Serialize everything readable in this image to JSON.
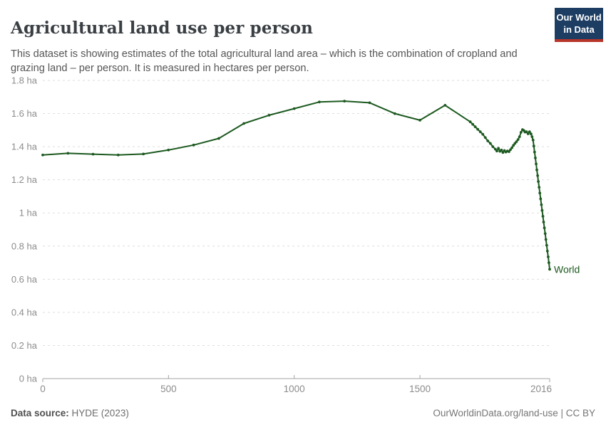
{
  "header": {
    "title": "Agricultural land use per person",
    "subtitle": "This dataset is showing estimates of the total agricultural land area – which is the combination of cropland and grazing land – per person. It is measured in hectares per person."
  },
  "logo": {
    "line1": "Our World",
    "line2": "in Data",
    "bg_color": "#1d3d63",
    "bar_color": "#b73529",
    "text_color": "#ffffff"
  },
  "chart_data": {
    "type": "line",
    "title": "Agricultural land use per person",
    "unit": "hectares per person",
    "xlabel": "",
    "ylabel": "",
    "xlim": [
      0,
      2016
    ],
    "ylim": [
      0,
      1.8
    ],
    "grid": "dashed-horizontal",
    "legend_position": "end-of-line-label",
    "line_color": "#1d5a20",
    "grid_color": "#dddddd",
    "axis_color": "#a3a3a3",
    "tick_label_color": "#8c8c8c",
    "x_ticks": [
      {
        "year": 0,
        "label": "0"
      },
      {
        "year": 500,
        "label": "500"
      },
      {
        "year": 1000,
        "label": "1000"
      },
      {
        "year": 1500,
        "label": "1500"
      },
      {
        "year": 2016,
        "label": "2016"
      }
    ],
    "y_ticks": [
      {
        "value": 0,
        "label": "0 ha"
      },
      {
        "value": 0.2,
        "label": "0.2 ha"
      },
      {
        "value": 0.4,
        "label": "0.4 ha"
      },
      {
        "value": 0.6,
        "label": "0.6 ha"
      },
      {
        "value": 0.8,
        "label": "0.8 ha"
      },
      {
        "value": 1,
        "label": "1 ha"
      },
      {
        "value": 1.2,
        "label": "1.2 ha"
      },
      {
        "value": 1.4,
        "label": "1.4 ha"
      },
      {
        "value": 1.6,
        "label": "1.6 ha"
      },
      {
        "value": 1.8,
        "label": "1.8 ha"
      }
    ],
    "series": [
      {
        "name": "World",
        "points": [
          [
            0,
            1.35
          ],
          [
            100,
            1.36
          ],
          [
            200,
            1.355
          ],
          [
            300,
            1.35
          ],
          [
            400,
            1.356
          ],
          [
            500,
            1.38
          ],
          [
            600,
            1.41
          ],
          [
            700,
            1.45
          ],
          [
            800,
            1.54
          ],
          [
            900,
            1.59
          ],
          [
            1000,
            1.63
          ],
          [
            1100,
            1.67
          ],
          [
            1200,
            1.675
          ],
          [
            1300,
            1.665
          ],
          [
            1400,
            1.6
          ],
          [
            1500,
            1.56
          ],
          [
            1600,
            1.65
          ],
          [
            1700,
            1.55
          ],
          [
            1710,
            1.535
          ],
          [
            1720,
            1.52
          ],
          [
            1730,
            1.505
          ],
          [
            1740,
            1.49
          ],
          [
            1750,
            1.475
          ],
          [
            1760,
            1.455
          ],
          [
            1770,
            1.435
          ],
          [
            1780,
            1.42
          ],
          [
            1790,
            1.4
          ],
          [
            1800,
            1.385
          ],
          [
            1806,
            1.374
          ],
          [
            1812,
            1.39
          ],
          [
            1818,
            1.372
          ],
          [
            1824,
            1.38
          ],
          [
            1830,
            1.365
          ],
          [
            1836,
            1.377
          ],
          [
            1842,
            1.368
          ],
          [
            1848,
            1.374
          ],
          [
            1854,
            1.37
          ],
          [
            1860,
            1.382
          ],
          [
            1866,
            1.394
          ],
          [
            1872,
            1.408
          ],
          [
            1878,
            1.42
          ],
          [
            1884,
            1.43
          ],
          [
            1890,
            1.443
          ],
          [
            1896,
            1.46
          ],
          [
            1902,
            1.487
          ],
          [
            1908,
            1.503
          ],
          [
            1914,
            1.497
          ],
          [
            1918,
            1.488
          ],
          [
            1924,
            1.49
          ],
          [
            1930,
            1.478
          ],
          [
            1936,
            1.49
          ],
          [
            1942,
            1.477
          ],
          [
            1946,
            1.46
          ],
          [
            1950,
            1.44
          ],
          [
            1953,
            1.404
          ],
          [
            1956,
            1.368
          ],
          [
            1959,
            1.332
          ],
          [
            1962,
            1.296
          ],
          [
            1965,
            1.26
          ],
          [
            1968,
            1.225
          ],
          [
            1971,
            1.19
          ],
          [
            1974,
            1.155
          ],
          [
            1977,
            1.12
          ],
          [
            1980,
            1.085
          ],
          [
            1983,
            1.05
          ],
          [
            1986,
            1.015
          ],
          [
            1989,
            0.98
          ],
          [
            1992,
            0.945
          ],
          [
            1995,
            0.91
          ],
          [
            1998,
            0.875
          ],
          [
            2001,
            0.84
          ],
          [
            2004,
            0.805
          ],
          [
            2007,
            0.77
          ],
          [
            2010,
            0.735
          ],
          [
            2013,
            0.7
          ],
          [
            2016,
            0.66
          ]
        ]
      }
    ]
  },
  "footer": {
    "datasource_label": "Data source:",
    "datasource_value": "HYDE (2023)",
    "credit": "OurWorldinData.org/land-use | CC BY"
  }
}
